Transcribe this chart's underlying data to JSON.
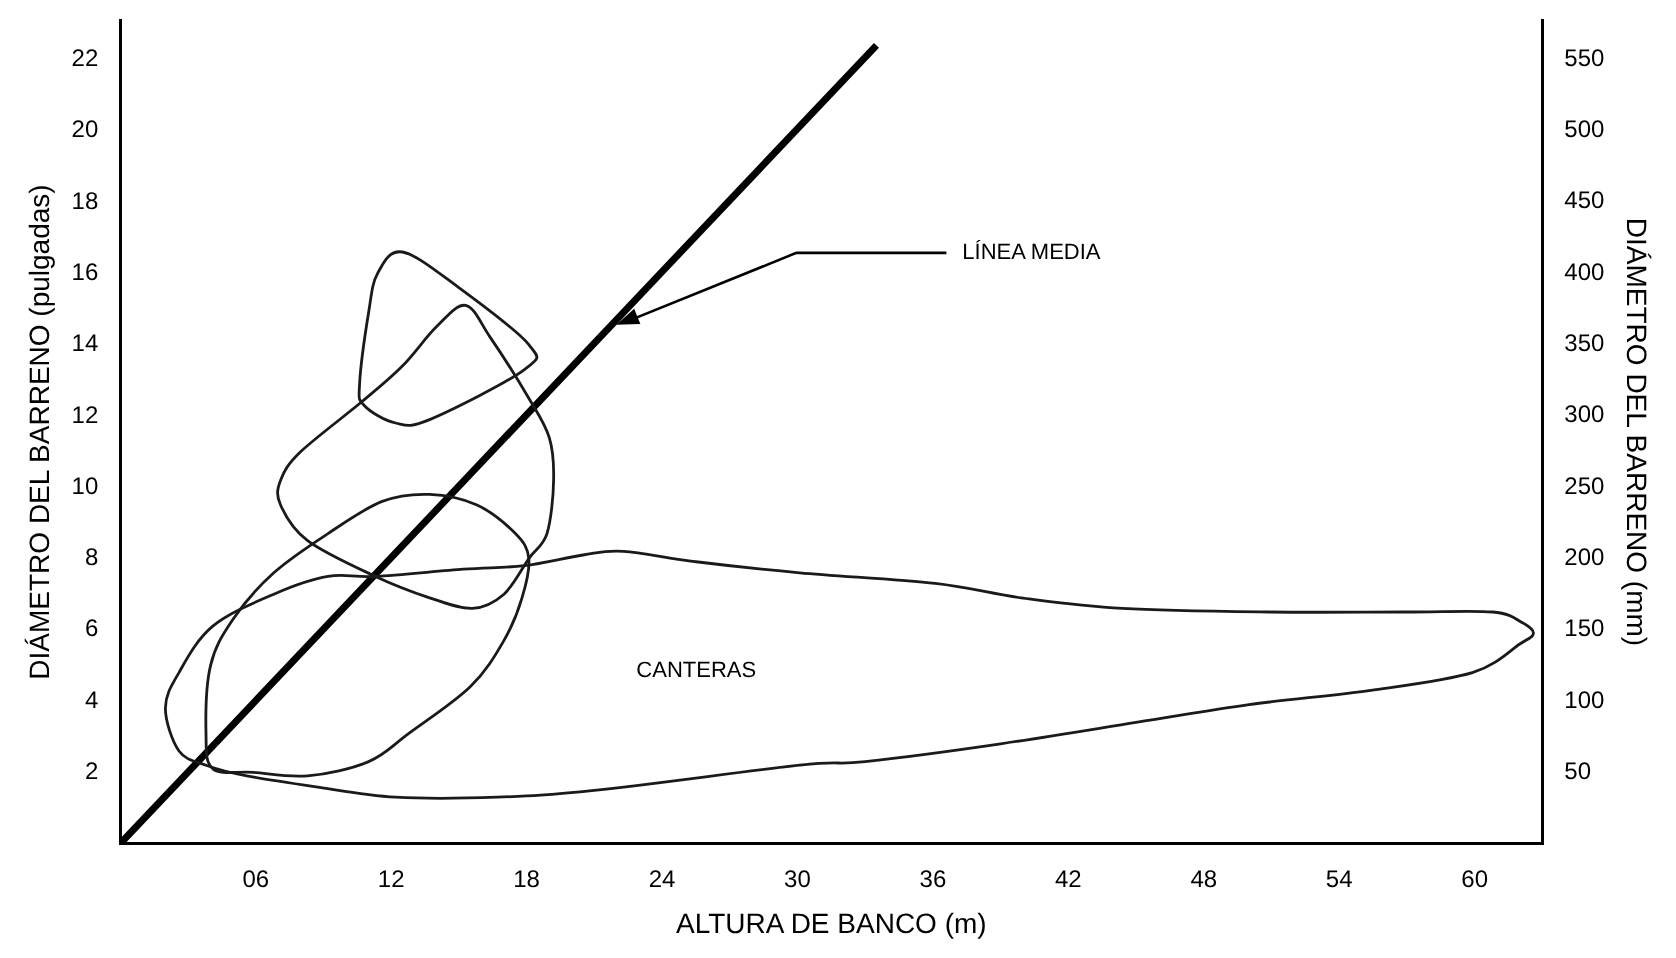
{
  "chart_data": {
    "type": "line",
    "xlabel": "ALTURA DE BANCO (m)",
    "ylabel": "DIÁMETRO DEL BARRENO (pulgadas)",
    "y2label": "DIÁMETRO DEL BARRENO (mm)",
    "xlim": [
      0,
      63
    ],
    "xticks": [
      {
        "value": 6,
        "label": "06"
      },
      12,
      18,
      24,
      30,
      36,
      42,
      48,
      54,
      60
    ],
    "ylim": [
      0,
      23.1
    ],
    "yticks": [
      2,
      4,
      6,
      8,
      10,
      12,
      14,
      16,
      18,
      20,
      22
    ],
    "y2lim": [
      0,
      577
    ],
    "y2ticks": [
      50,
      100,
      150,
      200,
      250,
      300,
      350,
      400,
      450,
      500,
      550
    ],
    "grid": false,
    "legend": false,
    "marker": "none",
    "line_style": "solid",
    "series": [
      {
        "color": "#000000",
        "x": [
          0,
          33.5
        ],
        "values": [
          0,
          22.4
        ]
      }
    ],
    "annotations": [
      {
        "text": "LÍNEA MEDIA",
        "x": 21.8,
        "y": 14.5
      },
      "CANTERAS"
    ]
  }
}
